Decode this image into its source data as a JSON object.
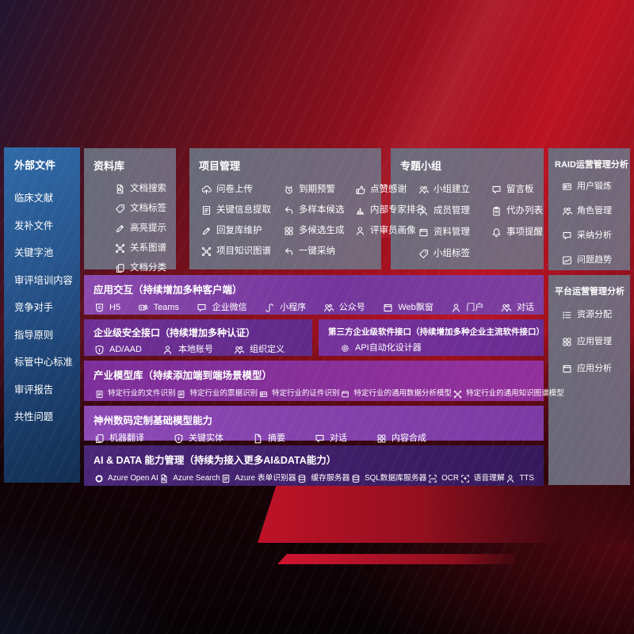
{
  "colors": {
    "background_red": "#a80f1f",
    "sidebar_blue_top": "#2f68a6",
    "sidebar_blue_bottom": "#16355e",
    "panel_gray": "#6e7183",
    "purple_row": "#7a3ba0",
    "purple_bright": "#8a49ae",
    "purple_deep": "#45236f"
  },
  "sidebar": {
    "title": "外部文件",
    "items": [
      "临床文献",
      "发补文件",
      "关键字池",
      "审评培训内容",
      "竞争对手",
      "指导原则",
      "标管中心标准",
      "审评报告",
      "共性问题"
    ]
  },
  "panels": {
    "library": {
      "title": "资料库",
      "items": [
        {
          "icon": "doc-search-icon",
          "label": "文档搜索"
        },
        {
          "icon": "doc-tag-icon",
          "label": "文档标签"
        },
        {
          "icon": "highlight-icon",
          "label": "高亮提示"
        },
        {
          "icon": "relation-graph-icon",
          "label": "关系图谱"
        },
        {
          "icon": "doc-category-icon",
          "label": "文档分类"
        }
      ]
    },
    "project": {
      "title": "项目管理",
      "items": [
        {
          "icon": "questionnaire-upload-icon",
          "label": "问卷上传"
        },
        {
          "icon": "due-alert-icon",
          "label": "到期预警"
        },
        {
          "icon": "thumbs-up-icon",
          "label": "点赞感谢"
        },
        {
          "icon": "key-info-extract-icon",
          "label": "关键信息提取"
        },
        {
          "icon": "multi-sample-icon",
          "label": "多样本候选"
        },
        {
          "icon": "expert-ranking-icon",
          "label": "内部专家排名"
        },
        {
          "icon": "reply-maintain-icon",
          "label": "回复库维护"
        },
        {
          "icon": "multi-candidate-icon",
          "label": "多候选生成"
        },
        {
          "icon": "reviewer-profile-icon",
          "label": "评审员画像"
        },
        {
          "icon": "project-graph-icon",
          "label": "项目知识图谱"
        },
        {
          "icon": "one-click-adopt-icon",
          "label": "一键采纳"
        }
      ]
    },
    "group": {
      "title": "专题小组",
      "items": [
        {
          "icon": "group-create-icon",
          "label": "小组建立"
        },
        {
          "icon": "message-board-icon",
          "label": "留言板"
        },
        {
          "icon": "member-manage-icon",
          "label": "成员管理"
        },
        {
          "icon": "todo-list-icon",
          "label": "代办列表"
        },
        {
          "icon": "material-manage-icon",
          "label": "资料管理"
        },
        {
          "icon": "reminder-bell-icon",
          "label": "事项提醒"
        },
        {
          "icon": "group-tag-icon",
          "label": "小组标签"
        }
      ]
    },
    "raid": {
      "title": "RAID运营管理分析",
      "items": [
        {
          "icon": "user-profile-card-icon",
          "label": "用户锻炼"
        },
        {
          "icon": "role-manage-icon",
          "label": "角色管理"
        },
        {
          "icon": "adoption-analysis-icon",
          "label": "采纳分析"
        },
        {
          "icon": "issue-trend-icon",
          "label": "问题趋势"
        }
      ]
    },
    "platform": {
      "title": "平台运营管理分析",
      "items": [
        {
          "icon": "resource-allocation-icon",
          "label": "资源分配"
        },
        {
          "icon": "app-manage-icon",
          "label": "应用管理"
        },
        {
          "icon": "app-analysis-icon",
          "label": "应用分析"
        }
      ]
    },
    "interaction": {
      "title": "应用交互（持续增加多种客户端）",
      "items": [
        {
          "icon": "h5-icon",
          "label": "H5"
        },
        {
          "icon": "teams-icon",
          "label": "Teams"
        },
        {
          "icon": "wecom-icon",
          "label": "企业微信"
        },
        {
          "icon": "miniprogram-icon",
          "label": "小程序"
        },
        {
          "icon": "official-account-icon",
          "label": "公众号"
        },
        {
          "icon": "web-popup-icon",
          "label": "Web飘窗"
        },
        {
          "icon": "portal-icon",
          "label": "门户"
        },
        {
          "icon": "dialog-icon",
          "label": "对话"
        }
      ]
    },
    "security": {
      "title": "企业级安全接口（持续增加多种认证）",
      "items": [
        {
          "icon": "ad-aad-icon",
          "label": "AD/AAD"
        },
        {
          "icon": "local-account-icon",
          "label": "本地账号"
        },
        {
          "icon": "org-define-icon",
          "label": "组织定义"
        }
      ]
    },
    "thirdparty": {
      "title": "第三方企业级软件接口（持续增加多种企业主流软件接口）",
      "items": [
        {
          "icon": "api-designer-icon",
          "label": "API自动化设计器"
        }
      ]
    },
    "models": {
      "title": "产业模型库（持续添加端到端场景模型）",
      "items": [
        {
          "icon": "file-recognition-icon",
          "label": "特定行业的文件识别"
        },
        {
          "icon": "receipt-recognition-icon",
          "label": "特定行业的票据识别"
        },
        {
          "icon": "certificate-recognition-icon",
          "label": "特定行业的证件识别"
        },
        {
          "icon": "data-analysis-model-icon",
          "label": "特定行业的通用数据分析模型"
        },
        {
          "icon": "knowledge-graph-model-icon",
          "label": "特定行业的通用知识图谱模型"
        }
      ]
    },
    "foundation": {
      "title": "神州数码定制基础模型能力",
      "items": [
        {
          "icon": "machine-translation-icon",
          "label": "机器翻译"
        },
        {
          "icon": "key-entity-icon",
          "label": "关键实体"
        },
        {
          "icon": "summary-icon",
          "label": "摘要"
        },
        {
          "icon": "dialogue-icon",
          "label": "对话"
        },
        {
          "icon": "content-compose-icon",
          "label": "内容合成"
        }
      ]
    },
    "aidata": {
      "title": "AI & DATA 能力管理（持续为接入更多AI&DATA能力）",
      "items": [
        {
          "icon": "azure-openai-icon",
          "label": "Azure Open AI"
        },
        {
          "icon": "azure-search-icon",
          "label": "Azure Search"
        },
        {
          "icon": "azure-form-icon",
          "label": "Azure 表单识别器"
        },
        {
          "icon": "cache-server-icon",
          "label": "缓存服务器"
        },
        {
          "icon": "sql-server-icon",
          "label": "SQL数据库服务器"
        },
        {
          "icon": "ocr-icon",
          "label": "OCR"
        },
        {
          "icon": "speech-understanding-icon",
          "label": "语音理解"
        },
        {
          "icon": "tts-icon",
          "label": "TTS"
        }
      ]
    }
  }
}
